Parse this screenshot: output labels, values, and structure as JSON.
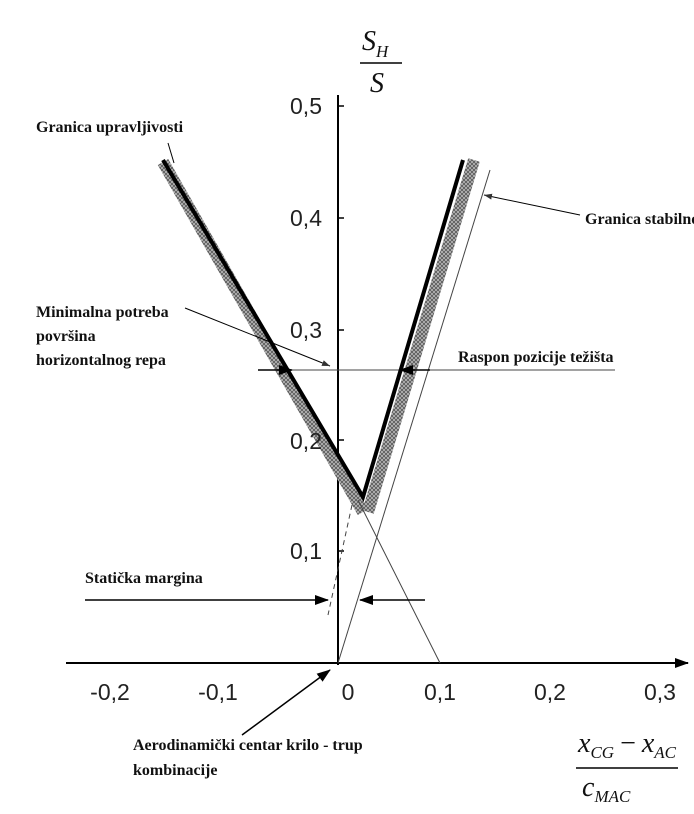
{
  "y_axis": {
    "numerator": "S",
    "numerator_sub": "H",
    "denominator": "S",
    "ticks": [
      "0,1",
      "0,2",
      "0,3",
      "0,4",
      "0,5"
    ]
  },
  "x_axis": {
    "numerator_a": "x",
    "numerator_a_sub": "CG",
    "minus": "−",
    "numerator_b": "x",
    "numerator_b_sub": "AC",
    "denominator": "c",
    "denominator_sub": "MAC",
    "ticks": [
      "-0,2",
      "-0,1",
      "0",
      "0,1",
      "0,2",
      "0,3"
    ]
  },
  "annotations": {
    "control_limit": "Granica upravljivosti",
    "stability_limit": "Granica stabilnosti",
    "min_area": [
      "Minimalna potreba",
      "površina",
      "horizontalnog repa"
    ],
    "cg_range": "Raspon pozicije težišta",
    "static_margin": "Statička margina",
    "aero_center": [
      "Aerodinamički centar krilo - trup",
      "kombinacije"
    ]
  }
}
